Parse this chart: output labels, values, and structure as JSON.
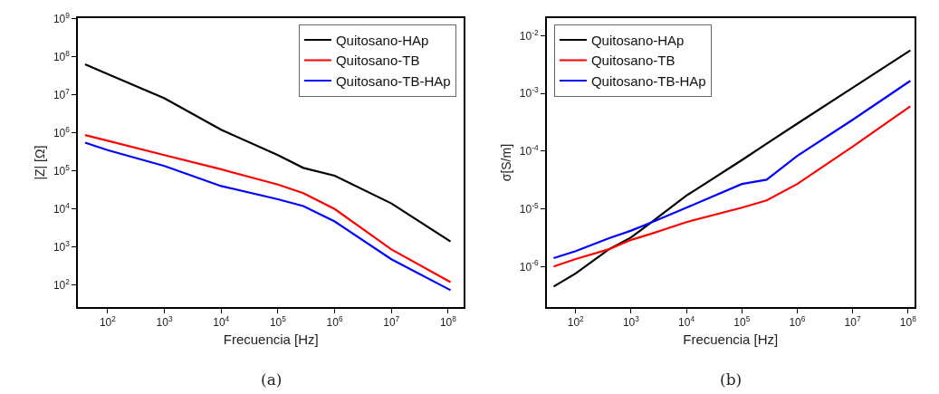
{
  "chart_data": [
    {
      "type": "line",
      "xlabel": "Frecuencia [Hz]",
      "ylabel": "|Z| [Ω]",
      "log": "xy",
      "legend": "top right",
      "line_style": "solid",
      "marker": "none",
      "x": [
        40,
        100,
        1000,
        10000,
        100000,
        280000,
        1000000,
        10000000,
        110000000
      ],
      "xlim": [
        30,
        190000000
      ],
      "ylim": [
        27,
        1000000000
      ],
      "xticks": [
        {
          "value": 100,
          "label": "10$^{2}$"
        },
        {
          "value": 1000,
          "label": "10$^{3}$"
        },
        {
          "value": 10000,
          "label": "10$^{4}$"
        },
        {
          "value": 100000,
          "label": "10$^{5}$"
        },
        {
          "value": 1000000,
          "label": "10$^{6}$"
        },
        {
          "value": 10000000,
          "label": "10$^{7}$"
        },
        {
          "value": 100000000,
          "label": "10$^{8}$"
        }
      ],
      "yticks": [
        {
          "value": 100,
          "label": "10$^{2}$"
        },
        {
          "value": 1000,
          "label": "10$^{3}$"
        },
        {
          "value": 10000,
          "label": "10$^{4}$"
        },
        {
          "value": 100000,
          "label": "10$^{5}$"
        },
        {
          "value": 1000000,
          "label": "10$^{6}$"
        },
        {
          "value": 10000000,
          "label": "10$^{7}$"
        },
        {
          "value": 100000000,
          "label": "10$^{8}$"
        },
        {
          "value": 1000000000,
          "label": "10$^{9}$"
        }
      ],
      "series": [
        {
          "name": "Quitosano-HAp",
          "color": "#000000",
          "values": [
            63000000,
            35000000,
            8000000,
            1200000,
            260000,
            120000,
            75000,
            14000,
            1400
          ]
        },
        {
          "name": "Quitosano-TB",
          "color": "#ff0000",
          "values": [
            870000,
            620000,
            260000,
            110000,
            44000,
            26000,
            10000,
            870,
            120
          ]
        },
        {
          "name": "Quitosano-TB-HAp",
          "color": "#0000ff",
          "values": [
            550000,
            350000,
            135000,
            40000,
            18000,
            12000,
            4700,
            480,
            74
          ]
        }
      ],
      "annotations": [
        "(a)"
      ]
    },
    {
      "type": "line",
      "xlabel": "Frecuencia [Hz]",
      "ylabel": "σ[S/m]",
      "log": "xy",
      "legend": "top left",
      "line_style": "solid",
      "marker": "none",
      "x": [
        40,
        100,
        400,
        1000,
        2300,
        10000,
        100000,
        280000,
        1000000,
        10000000,
        110000000
      ],
      "xlim": [
        30,
        130000000
      ],
      "ylim": [
        2e-07,
        0.02
      ],
      "xticks": [
        {
          "value": 100,
          "label": "10$^{2}$"
        },
        {
          "value": 1000,
          "label": "10$^{3}$"
        },
        {
          "value": 10000,
          "label": "10$^{4}$"
        },
        {
          "value": 100000,
          "label": "10$^{5}$"
        },
        {
          "value": 1000000,
          "label": "10$^{6}$"
        },
        {
          "value": 10000000,
          "label": "10$^{7}$"
        },
        {
          "value": 100000000,
          "label": "10$^{8}$"
        }
      ],
      "yticks": [
        {
          "value": 1e-06,
          "label": "10$^{-6}$"
        },
        {
          "value": 1e-05,
          "label": "10$^{-5}$"
        },
        {
          "value": 0.0001,
          "label": "10$^{-4}$"
        },
        {
          "value": 0.001,
          "label": "10$^{-3}$"
        },
        {
          "value": 0.01,
          "label": "10$^{-2}$"
        }
      ],
      "series": [
        {
          "name": "Quitosano-HAp",
          "color": "#000000",
          "values": [
            4.5e-07,
            7.6e-07,
            2e-06,
            3.2e-06,
            5.8e-06,
            1.7e-05,
            7e-05,
            0.000135,
            0.0003,
            0.00126,
            0.0056
          ]
        },
        {
          "name": "Quitosano-TB",
          "color": "#ff0000",
          "values": [
            1e-06,
            1.35e-06,
            2e-06,
            2.9e-06,
            3.7e-06,
            5.9e-06,
            1.05e-05,
            1.4e-05,
            2.7e-05,
            0.00012,
            0.0006
          ]
        },
        {
          "name": "Quitosano-TB-HAp",
          "color": "#0000ff",
          "values": [
            1.4e-06,
            1.85e-06,
            3.1e-06,
            4.2e-06,
            5.8e-06,
            1.05e-05,
            2.7e-05,
            3.2e-05,
            8.3e-05,
            0.00035,
            0.00166
          ]
        }
      ],
      "annotations": [
        "(b)"
      ]
    }
  ]
}
